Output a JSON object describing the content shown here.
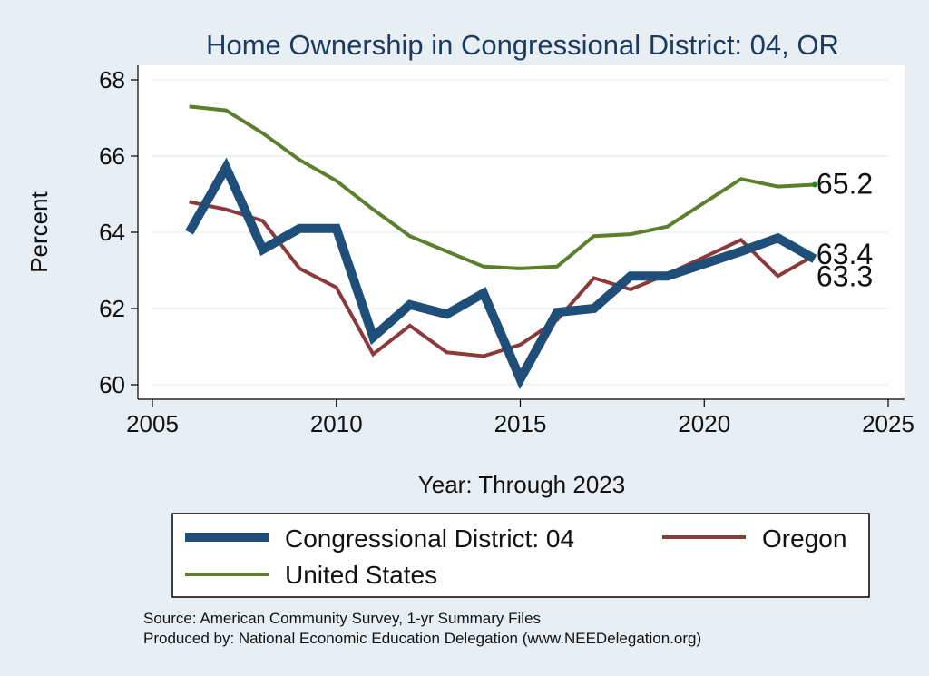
{
  "chart_data": {
    "type": "line",
    "title": "Home Ownership in Congressional District:  04, OR",
    "xlabel": "Year: Through 2023",
    "ylabel": "Percent",
    "xlim": [
      2005,
      2025
    ],
    "ylim": [
      60,
      68
    ],
    "x_ticks": [
      2005,
      2010,
      2015,
      2020,
      2025
    ],
    "y_ticks": [
      60,
      62,
      64,
      66,
      68
    ],
    "grid": true,
    "legend_position": "bottom",
    "series": [
      {
        "name": "Congressional District:  04",
        "color": "#1f4e79",
        "x": [
          2006,
          2007,
          2008,
          2009,
          2010,
          2011,
          2012,
          2013,
          2014,
          2015,
          2016,
          2017,
          2018,
          2019,
          2021,
          2022,
          2023
        ],
        "values": [
          64.0,
          65.7,
          63.55,
          64.1,
          64.1,
          61.25,
          62.1,
          61.85,
          62.4,
          60.15,
          61.9,
          62.0,
          62.85,
          62.85,
          63.5,
          63.85,
          63.3
        ],
        "end_label": "63.3"
      },
      {
        "name": "Oregon",
        "color": "#8b3a3a",
        "x": [
          2006,
          2007,
          2008,
          2009,
          2010,
          2011,
          2012,
          2013,
          2014,
          2015,
          2016,
          2017,
          2018,
          2019,
          2021,
          2022,
          2023
        ],
        "values": [
          64.8,
          64.6,
          64.3,
          63.05,
          62.55,
          60.8,
          61.55,
          60.85,
          60.75,
          61.05,
          61.7,
          62.8,
          62.5,
          62.9,
          63.8,
          62.85,
          63.4
        ],
        "end_label": "63.4"
      },
      {
        "name": "United States",
        "color": "#5c7f2e",
        "x": [
          2006,
          2007,
          2008,
          2009,
          2010,
          2011,
          2012,
          2013,
          2014,
          2015,
          2016,
          2017,
          2018,
          2019,
          2021,
          2022,
          2023
        ],
        "values": [
          67.3,
          67.2,
          66.6,
          65.9,
          65.35,
          64.6,
          63.9,
          63.5,
          63.1,
          63.05,
          63.1,
          63.9,
          63.95,
          64.15,
          65.4,
          65.2,
          65.25
        ],
        "end_label": "65.2"
      }
    ]
  },
  "notes": {
    "source": "Source: American Community Survey, 1-yr Summary Files",
    "produced": "Produced by: National Economic Education Delegation (www.NEEDelegation.org)"
  }
}
